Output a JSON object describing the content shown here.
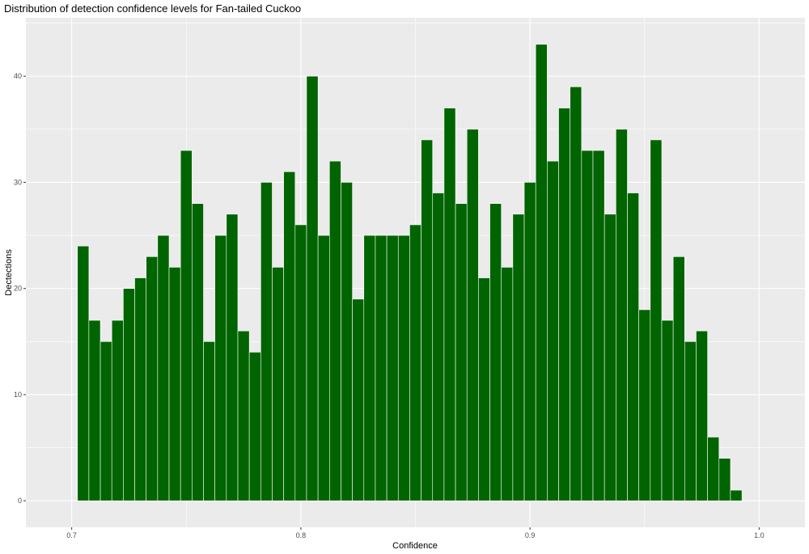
{
  "chart_data": {
    "type": "bar",
    "title": "Distribution of detection confidence levels for Fan-tailed Cuckoo",
    "xlabel": "Confidence",
    "ylabel": "Dectections",
    "xlim": [
      0.68,
      1.02
    ],
    "ylim": [
      -2.5,
      45.5
    ],
    "x_ticks": [
      0.7,
      0.8,
      0.9,
      1.0
    ],
    "x_tick_labels": [
      "0.7",
      "0.8",
      "0.9",
      "1.0"
    ],
    "y_ticks": [
      0,
      10,
      20,
      30,
      40
    ],
    "y_tick_labels": [
      "0",
      "10",
      "20",
      "30",
      "40"
    ],
    "bin_width": 0.005,
    "bin_centers": [
      0.705,
      0.71,
      0.715,
      0.72,
      0.725,
      0.73,
      0.735,
      0.74,
      0.745,
      0.75,
      0.755,
      0.76,
      0.765,
      0.77,
      0.775,
      0.78,
      0.785,
      0.79,
      0.795,
      0.8,
      0.805,
      0.81,
      0.815,
      0.82,
      0.825,
      0.83,
      0.835,
      0.84,
      0.845,
      0.85,
      0.855,
      0.86,
      0.865,
      0.87,
      0.875,
      0.88,
      0.885,
      0.89,
      0.895,
      0.9,
      0.905,
      0.91,
      0.915,
      0.92,
      0.925,
      0.93,
      0.935,
      0.94,
      0.945,
      0.95,
      0.955,
      0.96,
      0.965,
      0.97,
      0.975,
      0.98,
      0.985,
      0.99
    ],
    "values": [
      24,
      17,
      15,
      17,
      20,
      21,
      23,
      25,
      22,
      33,
      28,
      15,
      25,
      27,
      16,
      14,
      30,
      22,
      31,
      26,
      40,
      25,
      32,
      30,
      19,
      25,
      25,
      25,
      25,
      26,
      34,
      29,
      37,
      28,
      35,
      21,
      28,
      22,
      27,
      30,
      43,
      32,
      37,
      39,
      33,
      33,
      27,
      35,
      29,
      18,
      34,
      17,
      23,
      15,
      16,
      6,
      4,
      1
    ],
    "bar_fill": "#006400",
    "bar_outline": "#ffffff",
    "panel_background": "#ebebeb",
    "grid_major_color": "#ffffff",
    "grid": true,
    "legend": "none"
  }
}
